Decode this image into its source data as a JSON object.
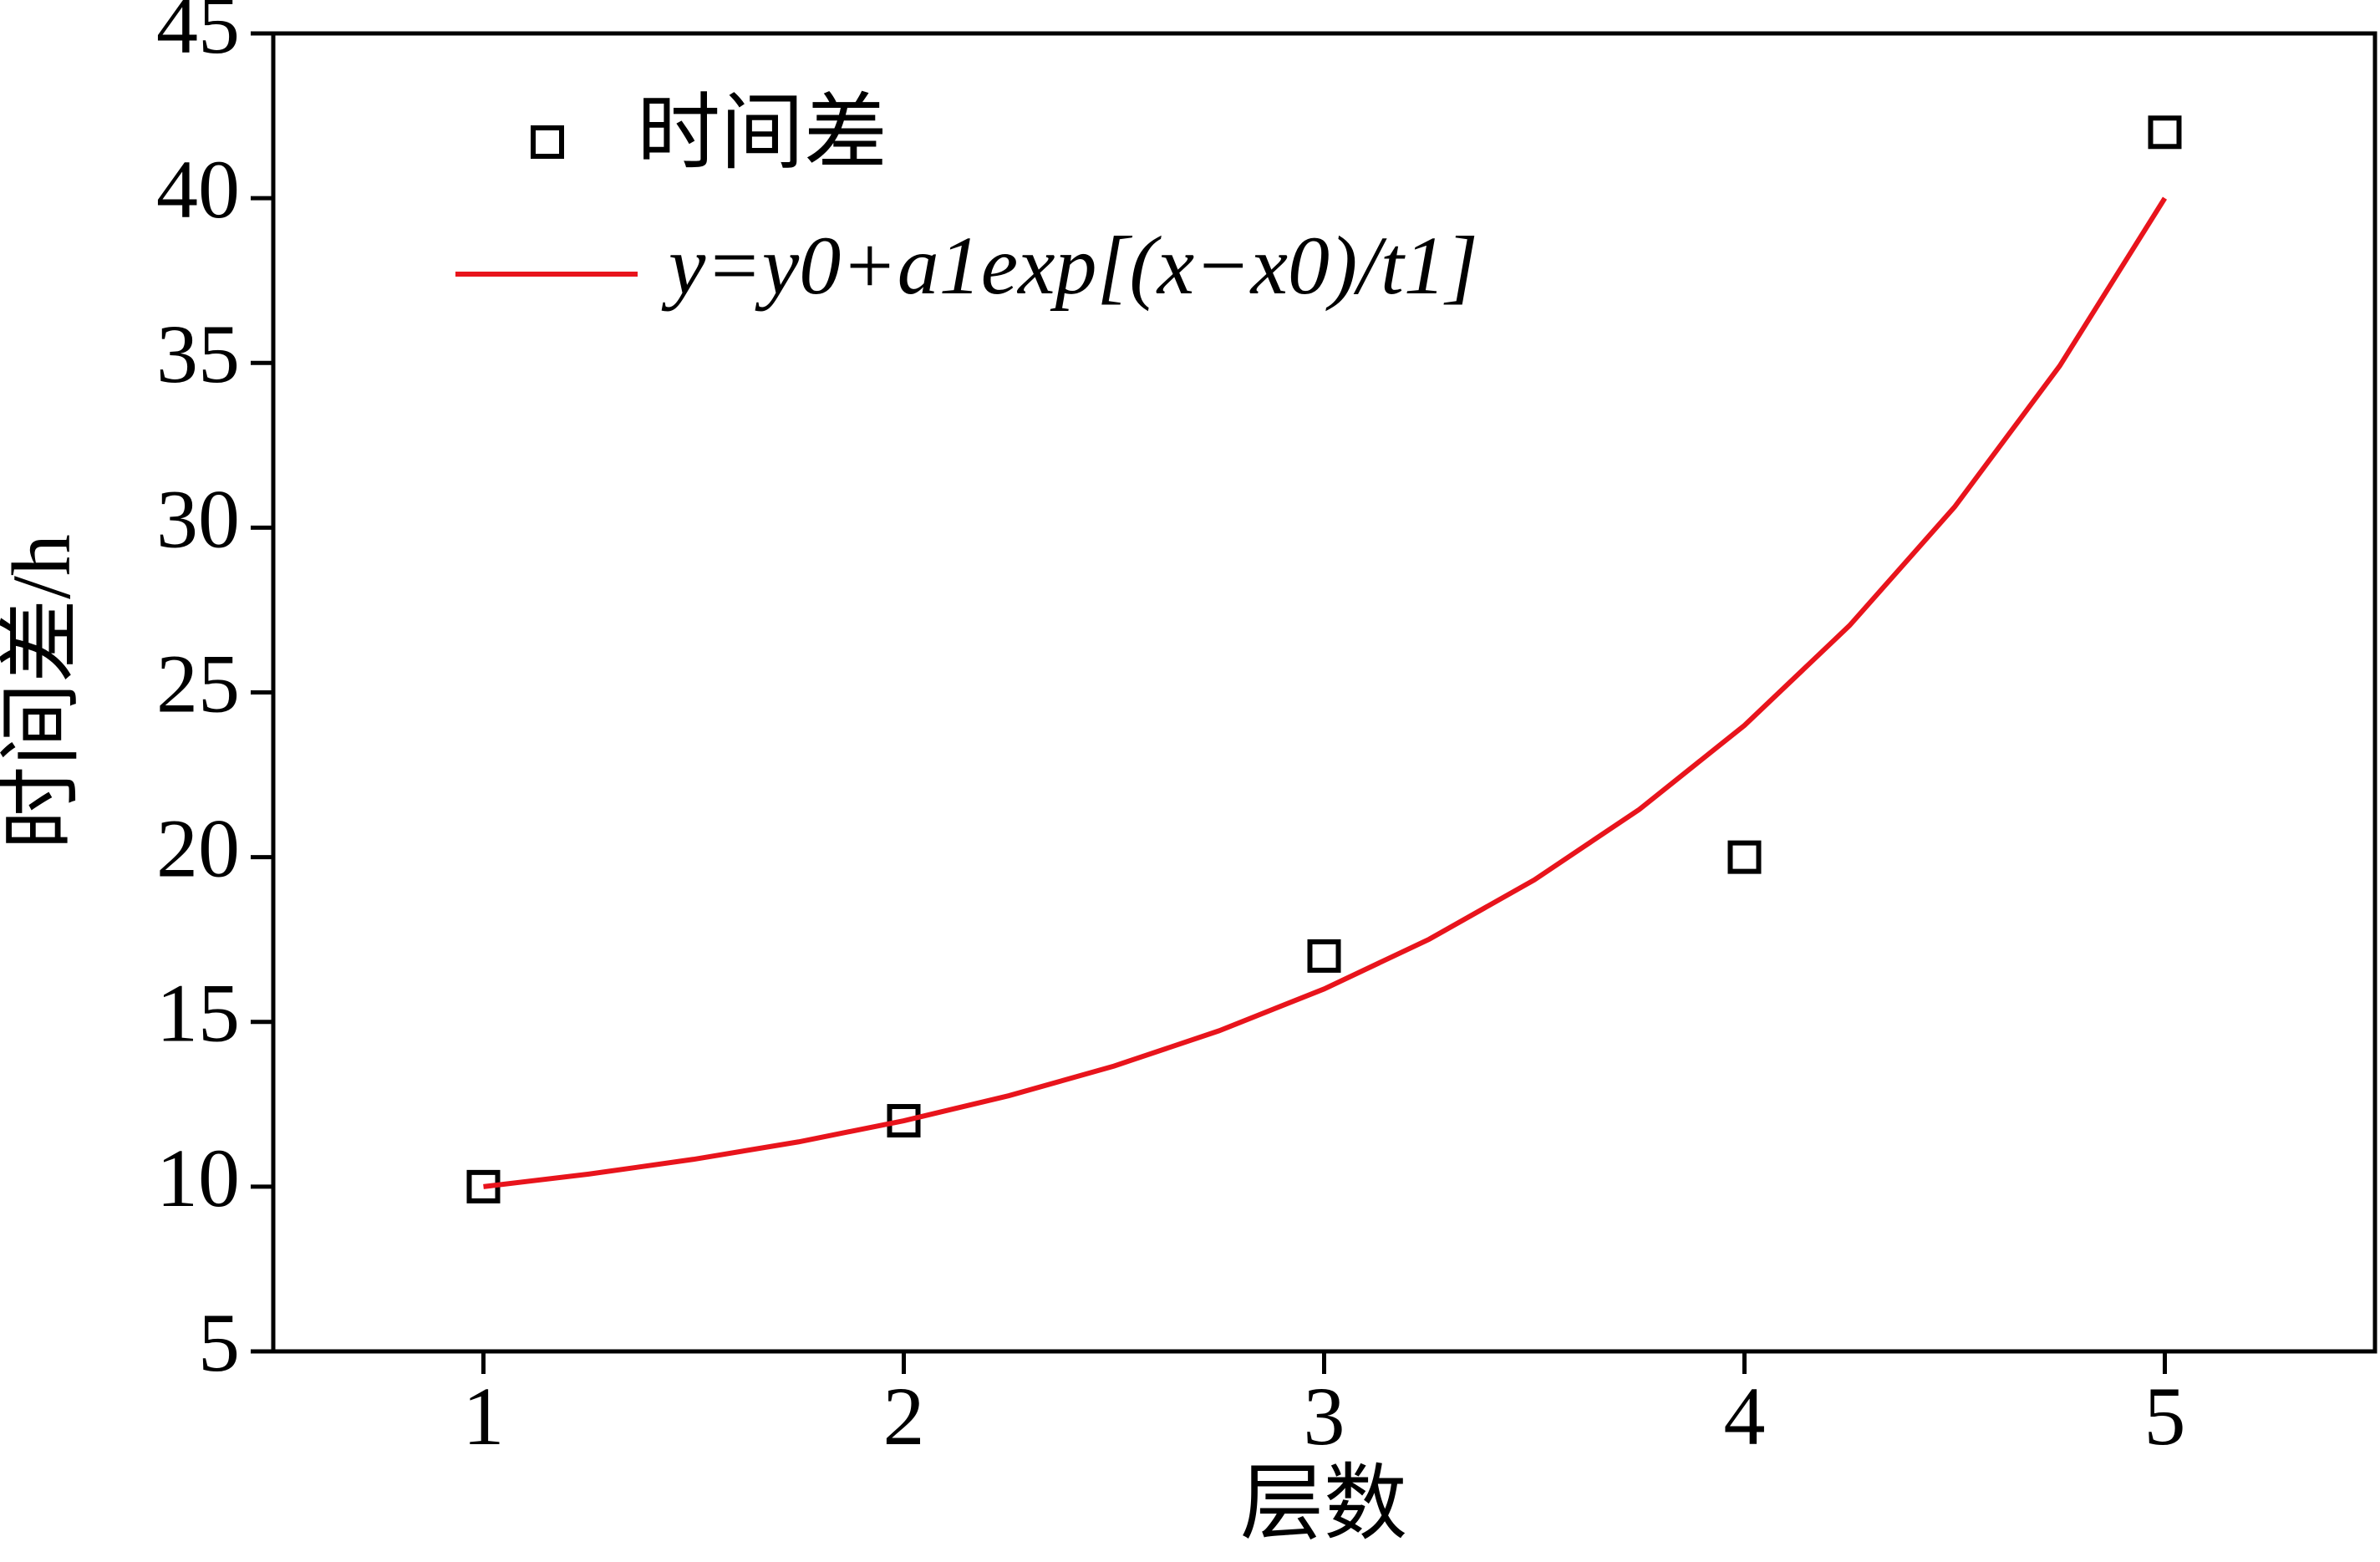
{
  "chart_data": {
    "type": "scatter",
    "x_label": "层数",
    "y_label": "时间差/h",
    "xlim": [
      0.5,
      5.5
    ],
    "xticks": [
      1,
      2,
      3,
      4,
      5
    ],
    "ylim": [
      5,
      45
    ],
    "yticks": [
      5,
      10,
      15,
      20,
      25,
      30,
      35,
      40,
      45
    ],
    "legend": "upper left",
    "series": [
      {
        "name": "时间差",
        "type": "scatter",
        "color": "#000000",
        "x": [
          1,
          2,
          3,
          4,
          5
        ],
        "values": [
          10,
          12,
          17,
          20,
          42
        ]
      },
      {
        "name": "y=y0+a1exp[(x−x0)/t1]",
        "type": "line",
        "color": "#e8141c",
        "x": [
          1,
          1.25,
          1.5,
          1.75,
          2,
          2.25,
          2.5,
          2.75,
          3,
          3.25,
          3.5,
          3.75,
          4,
          4.25,
          4.5,
          4.75,
          5
        ],
        "values": [
          10,
          10.38,
          10.83,
          11.36,
          12,
          12.76,
          13.66,
          14.73,
          16,
          17.51,
          19.31,
          21.45,
          24,
          27.03,
          30.63,
          34.91,
          40
        ]
      }
    ]
  }
}
